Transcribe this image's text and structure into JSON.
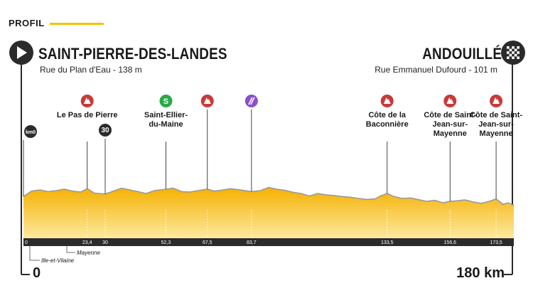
{
  "header": {
    "label": "PROFIL"
  },
  "start": {
    "name": "SAINT-PIERRE-DES-LANDES",
    "address": "Rue du Plan d'Eau - 138 m",
    "distance": "0"
  },
  "finish": {
    "name": "ANDOUILLÉ",
    "address": "Rue Emmanuel Dufourd - 101 m",
    "distance": "180 km"
  },
  "departments": [
    "Ille-et-Vilaine",
    "Mayenne"
  ],
  "chart_data": {
    "type": "area",
    "x": [
      0,
      3,
      6,
      9,
      12,
      15,
      18,
      21,
      23.4,
      26,
      30,
      33,
      36,
      39,
      42,
      45,
      48,
      52.3,
      55,
      58,
      61,
      64,
      67.5,
      70,
      73,
      76,
      79,
      83.7,
      87,
      90,
      93,
      96,
      99,
      102,
      105,
      108,
      111,
      114,
      117,
      120,
      123,
      126,
      129,
      131,
      133.5,
      136,
      139,
      142,
      145,
      148,
      151,
      154,
      156.6,
      159,
      162,
      165,
      168,
      171,
      173.5,
      176,
      178,
      180
    ],
    "y": [
      138,
      160,
      165,
      158,
      162,
      168,
      160,
      156,
      170,
      152,
      148,
      160,
      172,
      165,
      158,
      150,
      162,
      168,
      172,
      158,
      156,
      162,
      168,
      160,
      164,
      170,
      166,
      158,
      162,
      175,
      168,
      163,
      155,
      150,
      140,
      150,
      145,
      142,
      138,
      135,
      130,
      126,
      128,
      140,
      150,
      138,
      130,
      132,
      125,
      118,
      122,
      112,
      118,
      120,
      124,
      116,
      110,
      118,
      128,
      106,
      112,
      101
    ],
    "xlim": [
      0,
      180
    ],
    "ticks": [
      {
        "x": 0,
        "label": "0"
      },
      {
        "x": 23.4,
        "label": "23,4"
      },
      {
        "x": 30,
        "label": "30"
      },
      {
        "x": 52.3,
        "label": "52,3"
      },
      {
        "x": 67.5,
        "label": "67,5"
      },
      {
        "x": 83.7,
        "label": "83,7"
      },
      {
        "x": 133.5,
        "label": "133,5"
      },
      {
        "x": 156.6,
        "label": "156,6"
      },
      {
        "x": 173.5,
        "label": "173,5"
      }
    ],
    "points": [
      {
        "km": 0,
        "kind": "km0",
        "text": "km0",
        "label": ""
      },
      {
        "km": 23.4,
        "kind": "climb",
        "label": "Le Pas de Pierre"
      },
      {
        "km": 30,
        "kind": "km30",
        "text": "30",
        "label": ""
      },
      {
        "km": 52.3,
        "kind": "sprint",
        "label": "Saint-Ellier-du-Maine"
      },
      {
        "km": 67.5,
        "kind": "climb",
        "label": ""
      },
      {
        "km": 83.7,
        "kind": "feed",
        "label": ""
      },
      {
        "km": 133.5,
        "kind": "climb",
        "label": "Côte de la Baconnière"
      },
      {
        "km": 156.6,
        "kind": "climb",
        "label": "Côte de Saint-Jean-sur-Mayenne"
      },
      {
        "km": 173.5,
        "kind": "climb",
        "label": "Côte de Saint-Jean-sur-Mayenne"
      }
    ],
    "colors": {
      "fill": "#f5b100",
      "fill_light": "#fde9a0",
      "line": "#9a9a9a",
      "climb": "#c83a3a",
      "sprint": "#2ba84a",
      "feed": "#8b4fc8",
      "dark": "#2b2b2b"
    }
  }
}
